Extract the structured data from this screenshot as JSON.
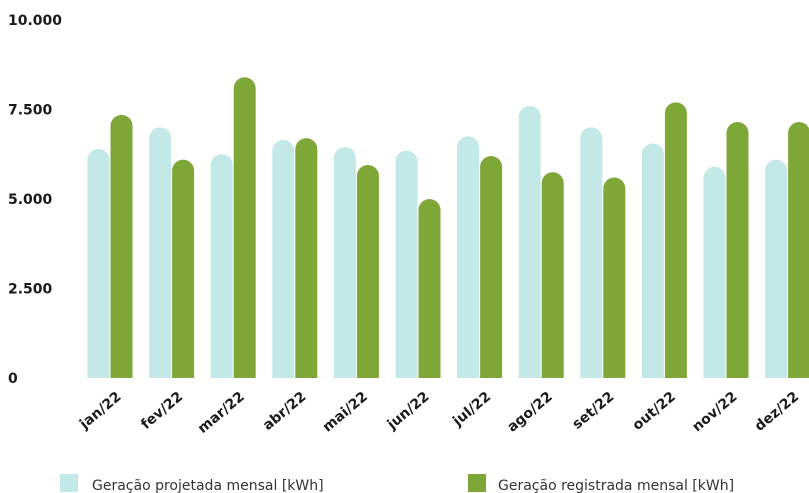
{
  "chart_data": {
    "type": "bar",
    "categories": [
      "jan/22",
      "fev/22",
      "mar/22",
      "abr/22",
      "mai/22",
      "jun/22",
      "jul/22",
      "ago/22",
      "set/22",
      "out/22",
      "nov/22",
      "dez/22"
    ],
    "series": [
      {
        "name": "Geração projetada mensal [kWh]",
        "color": "#c3e8e8",
        "values": [
          6400,
          7000,
          6250,
          6650,
          6450,
          6350,
          6750,
          7600,
          7000,
          6550,
          5900,
          6100
        ]
      },
      {
        "name": "Geração registrada mensal [kWh]",
        "color": "#7fa738",
        "values": [
          7350,
          6100,
          8400,
          6700,
          5950,
          5000,
          6200,
          5750,
          5600,
          7700,
          7150,
          7150
        ]
      }
    ],
    "yticks": [
      "0",
      "2.500",
      "5.000",
      "7.500",
      "10.000"
    ],
    "ytick_values": [
      0,
      2500,
      5000,
      7500,
      10000
    ],
    "ylim": [
      0,
      10000
    ],
    "grid": false,
    "legend_position": "bottom",
    "title": "",
    "xlabel": "",
    "ylabel": ""
  }
}
